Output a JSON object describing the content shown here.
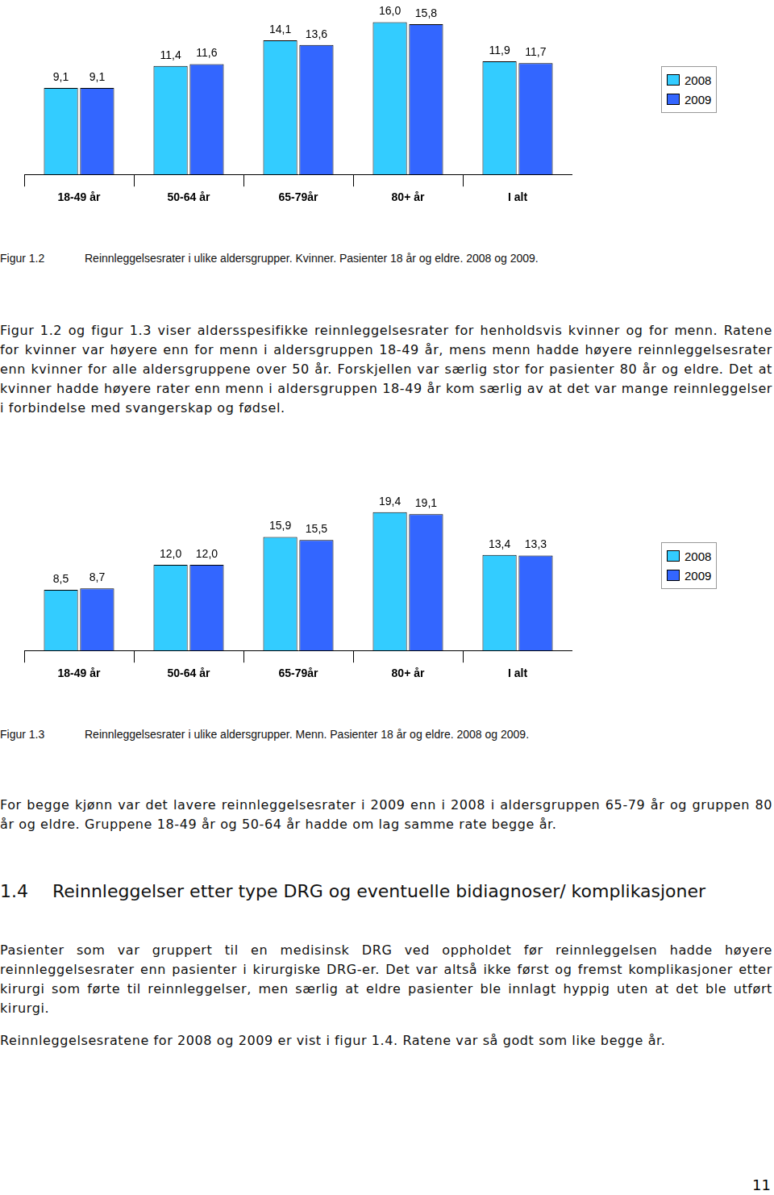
{
  "chart_data": [
    {
      "type": "bar",
      "categories": [
        "18-49 år",
        "50-64 år",
        "65-79år",
        "80+ år",
        "I alt"
      ],
      "series": [
        {
          "name": "2008",
          "color": "#33ccff",
          "values": [
            9.1,
            11.4,
            14.1,
            16.0,
            11.9
          ],
          "value_labels": [
            "9,1",
            "11,4",
            "14,1",
            "16,0",
            "11,9"
          ]
        },
        {
          "name": "2009",
          "color": "#3366ff",
          "values": [
            9.1,
            11.6,
            13.6,
            15.8,
            11.7
          ],
          "value_labels": [
            "9,1",
            "11,6",
            "13,6",
            "15,8",
            "11,7"
          ]
        }
      ],
      "ylim": [
        0,
        18
      ],
      "data_labels": true,
      "tick_labels": "x",
      "grid": false,
      "legend": "right"
    },
    {
      "type": "bar",
      "categories": [
        "18-49 år",
        "50-64 år",
        "65-79år",
        "80+ år",
        "I alt"
      ],
      "series": [
        {
          "name": "2008",
          "color": "#33ccff",
          "values": [
            8.5,
            12.0,
            15.9,
            19.4,
            13.4
          ],
          "value_labels": [
            "8,5",
            "12,0",
            "15,9",
            "19,4",
            "13,4"
          ]
        },
        {
          "name": "2009",
          "color": "#3366ff",
          "values": [
            8.7,
            12.0,
            15.5,
            19.1,
            13.3
          ],
          "value_labels": [
            "8,7",
            "12,0",
            "15,5",
            "19,1",
            "13,3"
          ]
        }
      ],
      "ylim": [
        0,
        24
      ],
      "data_labels": true,
      "tick_labels": "x",
      "grid": false,
      "legend": "right"
    }
  ],
  "document": {
    "figure_captions": [
      {
        "number": "Figur 1.2",
        "text": "Reinnleggelsesrater i ulike aldersgrupper. Kvinner. Pasienter 18 år og eldre. 2008 og 2009."
      },
      {
        "number": "Figur 1.3",
        "text": "Reinnleggelsesrater i ulike aldersgrupper. Menn. Pasienter 18 år og eldre. 2008 og 2009."
      }
    ],
    "paragraphs": [
      "Figur 1.2 og figur 1.3 viser aldersspesifikke reinnleggelsesrater for henholdsvis kvinner og for menn. Ratene for kvinner var høyere enn for menn i aldersgruppen 18-49 år, mens menn hadde høyere reinnleggelsesrater enn kvinner for alle aldersgruppene over 50 år. Forskjellen var særlig stor for pasienter 80 år og eldre. Det at kvinner hadde høyere rater enn menn i aldersgruppen 18-49 år kom særlig av at det var mange reinnleggelser i forbindelse med svangerskap og fødsel.",
      "For begge kjønn var det lavere reinnleggelsesrater i 2009 enn i 2008 i aldersgruppen 65-79 år og gruppen 80 år og eldre. Gruppene 18-49 år og 50-64 år hadde om lag samme rate begge år.",
      "Pasienter som var gruppert til en medisinsk DRG ved oppholdet før reinnleggelsen hadde høyere reinnleggelsesrater enn pasienter i kirurgiske DRG-er. Det var altså ikke først og fremst komplikasjoner etter kirurgi som førte til reinnleggelser, men særlig at eldre pasienter ble innlagt hyppig uten at det ble utført kirurgi.",
      "Reinnleggelsesratene for 2008 og 2009 er vist i figur 1.4. Ratene var så godt som like begge år."
    ],
    "heading": {
      "number": "1.4",
      "text": "Reinnleggelser etter type DRG og eventuelle bidiagnoser/ komplikasjoner"
    },
    "page_number": "11"
  }
}
